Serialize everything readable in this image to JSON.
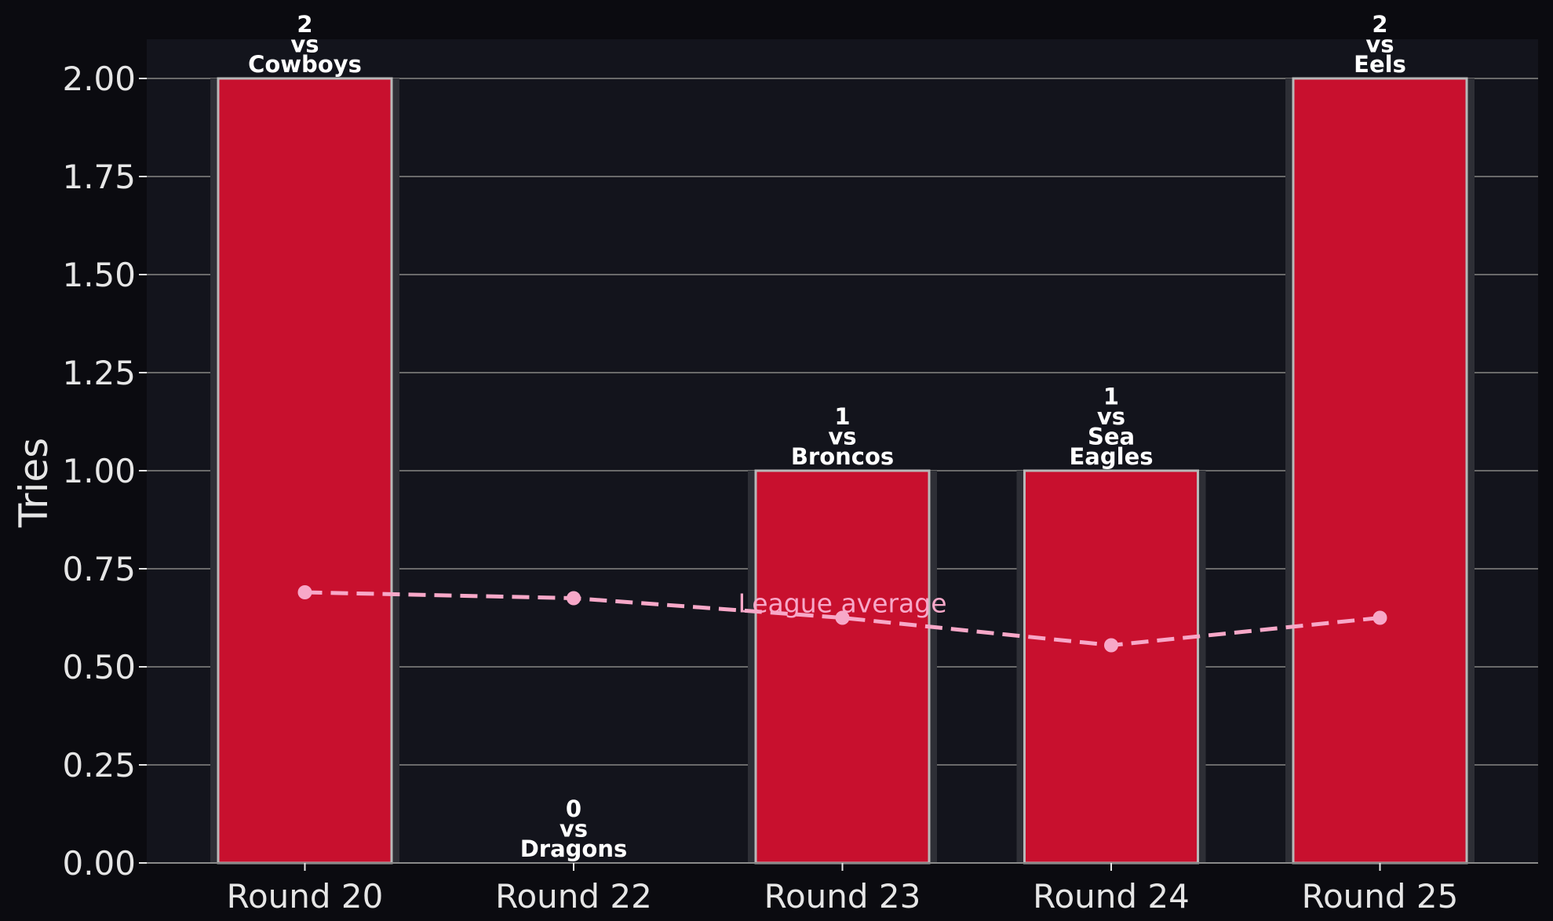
{
  "chart_data": {
    "type": "bar",
    "categories": [
      "Round 20",
      "Round 22",
      "Round 23",
      "Round 24",
      "Round 25"
    ],
    "series": [
      {
        "values": [
          2,
          0,
          1,
          1,
          2
        ]
      }
    ],
    "opponents": [
      "Cowboys",
      "Dragons",
      "Broncos",
      "Sea Eagles",
      "Eels"
    ],
    "bar_labels": [
      [
        "2",
        "vs",
        "Cowboys"
      ],
      [
        "0",
        "vs",
        "Dragons"
      ],
      [
        "1",
        "vs",
        "Broncos"
      ],
      [
        "1",
        "vs",
        "Sea",
        "Eagles"
      ],
      [
        "2",
        "vs",
        "Eels"
      ]
    ],
    "league_average": {
      "label": "League average",
      "values": [
        0.69,
        0.675,
        0.625,
        0.555,
        0.625
      ]
    },
    "xlabel": "",
    "ylabel": "Tries",
    "ylim": [
      0,
      2.1
    ],
    "yticks": [
      "0.00",
      "0.25",
      "0.50",
      "0.75",
      "1.00",
      "1.25",
      "1.50",
      "1.75",
      "2.00"
    ],
    "grid": true,
    "colors": {
      "bar": "#c8102e",
      "bar_edge": "#b8b8b8",
      "average_line": "#f7a8c8",
      "plot_background": "#13141c",
      "page_background": "#0b0b10",
      "grid": "#6a6a6a"
    }
  }
}
